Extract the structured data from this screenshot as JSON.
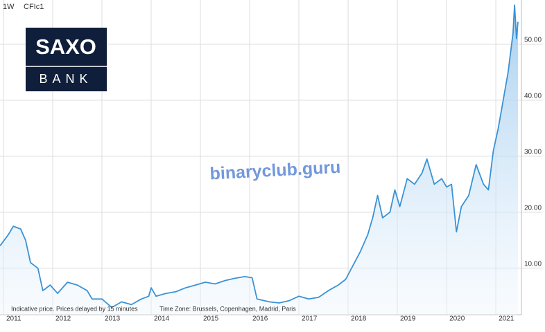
{
  "chart_data": {
    "type": "line",
    "interval": "1W",
    "symbol": "CFIc1",
    "logo_top": "SAXO",
    "logo_bottom": "BANK",
    "watermark": "binaryclub.guru",
    "notes": [
      "Indicative price. Prices delayed by 15 minutes",
      "Time Zone: Brussels, Copenhagen, Madrid, Paris"
    ],
    "grid": true,
    "xlim": [
      2010.93,
      2021.52
    ],
    "xticks": [
      2011,
      2012,
      2013,
      2014,
      2015,
      2016,
      2017,
      2018,
      2019,
      2020,
      2021
    ],
    "ylim": [
      1.7,
      57.9
    ],
    "yticks": [
      {
        "value": 10,
        "label": "10.00"
      },
      {
        "value": 20,
        "label": "20.00"
      },
      {
        "value": 30,
        "label": "30.00"
      },
      {
        "value": 40,
        "label": "40.00"
      },
      {
        "value": 50,
        "label": "50.00"
      }
    ],
    "series": [
      {
        "name": "CFIc1",
        "color": "#3a92d4",
        "x": [
          2010.93,
          2011.1,
          2011.2,
          2011.35,
          2011.45,
          2011.55,
          2011.7,
          2011.8,
          2011.95,
          2012.1,
          2012.3,
          2012.5,
          2012.7,
          2012.8,
          2013.0,
          2013.2,
          2013.4,
          2013.6,
          2013.8,
          2013.95,
          2014.0,
          2014.1,
          2014.3,
          2014.5,
          2014.7,
          2014.9,
          2015.1,
          2015.3,
          2015.5,
          2015.7,
          2015.9,
          2016.05,
          2016.15,
          2016.4,
          2016.6,
          2016.8,
          2017.0,
          2017.2,
          2017.4,
          2017.6,
          2017.8,
          2017.95,
          2018.1,
          2018.25,
          2018.4,
          2018.5,
          2018.6,
          2018.7,
          2018.85,
          2018.95,
          2019.05,
          2019.2,
          2019.35,
          2019.5,
          2019.6,
          2019.75,
          2019.9,
          2020.0,
          2020.1,
          2020.2,
          2020.3,
          2020.45,
          2020.6,
          2020.75,
          2020.85,
          2020.95,
          2021.05,
          2021.15,
          2021.25,
          2021.35,
          2021.38,
          2021.42,
          2021.45
        ],
        "values": [
          14,
          16,
          17.5,
          17,
          15,
          11,
          10,
          6,
          7,
          5.5,
          7.5,
          7,
          6,
          4.5,
          4.5,
          3,
          4,
          3.5,
          4.5,
          5,
          6.5,
          5,
          5.5,
          5.8,
          6.5,
          7,
          7.5,
          7.2,
          7.8,
          8.2,
          8.5,
          8.3,
          4.5,
          4,
          3.8,
          4.2,
          5,
          4.5,
          4.8,
          6,
          7,
          8,
          10.5,
          13,
          16,
          19,
          23,
          19,
          20,
          24,
          21,
          26,
          25,
          27,
          29.5,
          25,
          26,
          24.5,
          25,
          16.5,
          21,
          23,
          28.5,
          25,
          24,
          31,
          35,
          40,
          45,
          52,
          57,
          51,
          54
        ]
      }
    ]
  }
}
